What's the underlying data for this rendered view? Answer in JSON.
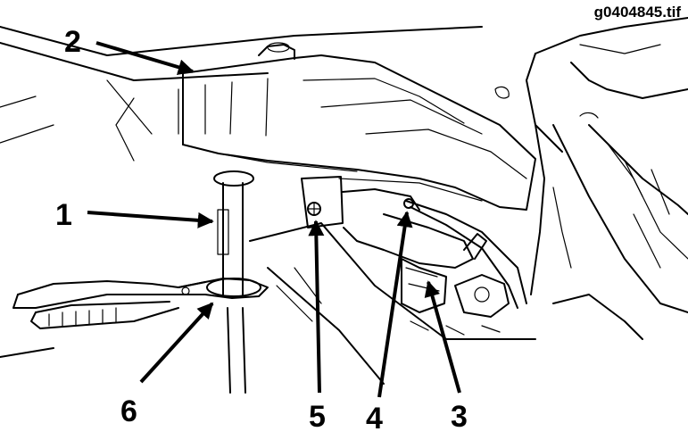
{
  "file_id": "g0404845.tif",
  "callouts": [
    "1",
    "2",
    "3",
    "4",
    "5",
    "6"
  ]
}
